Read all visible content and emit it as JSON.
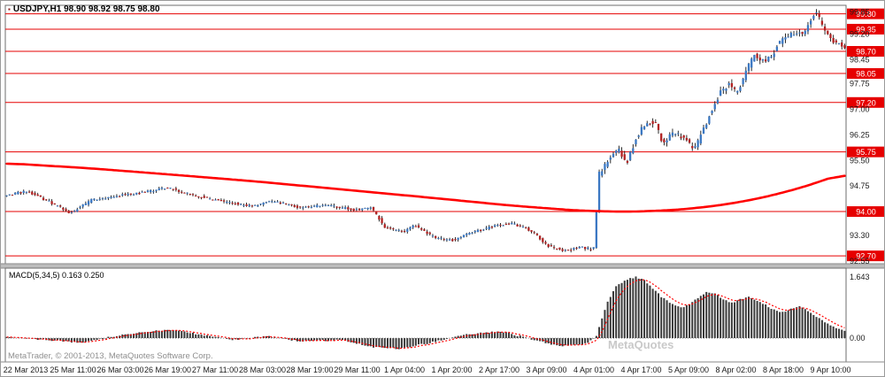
{
  "titlebar": {
    "marker": "▪",
    "text": "USDJPY,H1 98.90 98.92 98.75 98.80"
  },
  "macd_panel": {
    "label": "MACD(5,34,5) 0.163 0.250"
  },
  "watermarks": {
    "copyright": "MetaTrader, © 2001-2013, MetaQuotes Software Corp.",
    "brand": "MetaQuotes"
  },
  "colors": {
    "bull": "#3b78c3",
    "bear": "#b22222",
    "wick": "#151515",
    "hline": "#e60000",
    "ma": "#ff0000",
    "tag_bg": "#e60000",
    "tag_text": "#ffffff",
    "histogram": "#3a3a3a",
    "signal": "#ff0000",
    "axis_text": "#1a1a1a",
    "zero_line": "#999999"
  },
  "price_axis": {
    "plain_labels": [
      "99.85",
      "99.20",
      "98.45",
      "97.75",
      "97.00",
      "96.25",
      "95.50",
      "94.75",
      "93.30",
      "92.55"
    ],
    "tag_labels": [
      "99.80",
      "99.35",
      "98.70",
      "98.05",
      "97.20",
      "95.75",
      "94.00",
      "92.70"
    ]
  },
  "time_axis": {
    "labels": [
      "22 Mar 2013",
      "25 Mar 11:00",
      "26 Mar 03:00",
      "26 Mar 19:00",
      "27 Mar 11:00",
      "28 Mar 03:00",
      "28 Mar 19:00",
      "29 Mar 11:00",
      "1 Apr 04:00",
      "1 Apr 20:00",
      "2 Apr 17:00",
      "3 Apr 09:00",
      "4 Apr 01:00",
      "4 Apr 17:00",
      "5 Apr 09:00",
      "8 Apr 02:00",
      "8 Apr 18:00",
      "9 Apr 10:00"
    ]
  },
  "macd_axis": {
    "labels": [
      {
        "text": "1.643",
        "value": 1.643
      },
      {
        "text": "0.00",
        "value": 0
      }
    ]
  },
  "chart_data": {
    "type": "candlestick",
    "symbol": "USDJPY",
    "timeframe": "H1",
    "quote": {
      "open": 98.9,
      "high": 98.92,
      "low": 98.75,
      "close": 98.8
    },
    "price_range": [
      92.47,
      100.05
    ],
    "candle_count": 298,
    "hlines": [
      99.8,
      99.35,
      98.7,
      98.05,
      97.2,
      95.75,
      94.0,
      92.7
    ],
    "price_anchors": [
      [
        0,
        94.45
      ],
      [
        0.026,
        94.6
      ],
      [
        0.053,
        94.3
      ],
      [
        0.079,
        93.95
      ],
      [
        0.105,
        94.35
      ],
      [
        0.132,
        94.45
      ],
      [
        0.163,
        94.55
      ],
      [
        0.195,
        94.7
      ],
      [
        0.221,
        94.5
      ],
      [
        0.258,
        94.3
      ],
      [
        0.295,
        94.15
      ],
      [
        0.321,
        94.3
      ],
      [
        0.353,
        94.1
      ],
      [
        0.384,
        94.2
      ],
      [
        0.416,
        94.05
      ],
      [
        0.437,
        94.1
      ],
      [
        0.453,
        93.55
      ],
      [
        0.474,
        93.4
      ],
      [
        0.489,
        93.6
      ],
      [
        0.511,
        93.25
      ],
      [
        0.532,
        93.15
      ],
      [
        0.553,
        93.35
      ],
      [
        0.579,
        93.55
      ],
      [
        0.605,
        93.65
      ],
      [
        0.626,
        93.45
      ],
      [
        0.647,
        93.0
      ],
      [
        0.668,
        92.85
      ],
      [
        0.684,
        92.95
      ],
      [
        0.698,
        92.9
      ],
      [
        0.702,
        93.0
      ],
      [
        0.708,
        95.1
      ],
      [
        0.721,
        95.6
      ],
      [
        0.732,
        95.85
      ],
      [
        0.74,
        95.35
      ],
      [
        0.751,
        96.1
      ],
      [
        0.761,
        96.55
      ],
      [
        0.774,
        96.65
      ],
      [
        0.784,
        96.0
      ],
      [
        0.797,
        96.35
      ],
      [
        0.811,
        96.1
      ],
      [
        0.821,
        95.8
      ],
      [
        0.832,
        96.4
      ],
      [
        0.842,
        97.0
      ],
      [
        0.853,
        97.55
      ],
      [
        0.863,
        97.75
      ],
      [
        0.872,
        97.45
      ],
      [
        0.882,
        98.1
      ],
      [
        0.893,
        98.6
      ],
      [
        0.902,
        98.4
      ],
      [
        0.913,
        98.55
      ],
      [
        0.921,
        98.95
      ],
      [
        0.932,
        99.1
      ],
      [
        0.942,
        99.3
      ],
      [
        0.951,
        99.15
      ],
      [
        0.959,
        99.6
      ],
      [
        0.965,
        99.85
      ],
      [
        0.974,
        99.45
      ],
      [
        0.982,
        99.1
      ],
      [
        0.989,
        98.95
      ],
      [
        1,
        98.8
      ]
    ],
    "ma_anchors": [
      [
        0,
        95.42
      ],
      [
        0.1,
        95.27
      ],
      [
        0.2,
        95.08
      ],
      [
        0.3,
        94.88
      ],
      [
        0.4,
        94.65
      ],
      [
        0.5,
        94.42
      ],
      [
        0.6,
        94.18
      ],
      [
        0.68,
        94.03
      ],
      [
        0.74,
        93.99
      ],
      [
        0.8,
        94.05
      ],
      [
        0.85,
        94.18
      ],
      [
        0.9,
        94.4
      ],
      [
        0.95,
        94.72
      ],
      [
        1,
        95.15
      ]
    ],
    "macd": {
      "params": "5,34,5",
      "last_main": 0.163,
      "last_signal": 0.25,
      "axis_max": 1.643,
      "range": [
        -0.64,
        1.88
      ],
      "anchors": [
        [
          0,
          0.02
        ],
        [
          0.05,
          -0.05
        ],
        [
          0.09,
          -0.12
        ],
        [
          0.13,
          0.05
        ],
        [
          0.17,
          0.18
        ],
        [
          0.2,
          0.22
        ],
        [
          0.23,
          0.1
        ],
        [
          0.27,
          -0.05
        ],
        [
          0.31,
          0.05
        ],
        [
          0.35,
          -0.08
        ],
        [
          0.4,
          -0.05
        ],
        [
          0.44,
          -0.25
        ],
        [
          0.47,
          -0.28
        ],
        [
          0.5,
          -0.15
        ],
        [
          0.55,
          0.1
        ],
        [
          0.59,
          0.18
        ],
        [
          0.63,
          -0.05
        ],
        [
          0.66,
          -0.22
        ],
        [
          0.69,
          -0.15
        ],
        [
          0.703,
          0.05
        ],
        [
          0.715,
          0.9
        ],
        [
          0.725,
          1.35
        ],
        [
          0.737,
          1.56
        ],
        [
          0.75,
          1.643
        ],
        [
          0.76,
          1.55
        ],
        [
          0.77,
          1.33
        ],
        [
          0.78,
          1.12
        ],
        [
          0.795,
          0.88
        ],
        [
          0.805,
          0.8
        ],
        [
          0.815,
          0.92
        ],
        [
          0.825,
          1.1
        ],
        [
          0.835,
          1.25
        ],
        [
          0.845,
          1.2
        ],
        [
          0.855,
          1.02
        ],
        [
          0.865,
          0.95
        ],
        [
          0.875,
          1.05
        ],
        [
          0.885,
          1.1
        ],
        [
          0.895,
          1.0
        ],
        [
          0.905,
          0.88
        ],
        [
          0.915,
          0.75
        ],
        [
          0.925,
          0.7
        ],
        [
          0.935,
          0.8
        ],
        [
          0.945,
          0.85
        ],
        [
          0.955,
          0.73
        ],
        [
          0.965,
          0.58
        ],
        [
          0.975,
          0.44
        ],
        [
          0.985,
          0.3
        ],
        [
          1,
          0.163
        ]
      ]
    }
  }
}
